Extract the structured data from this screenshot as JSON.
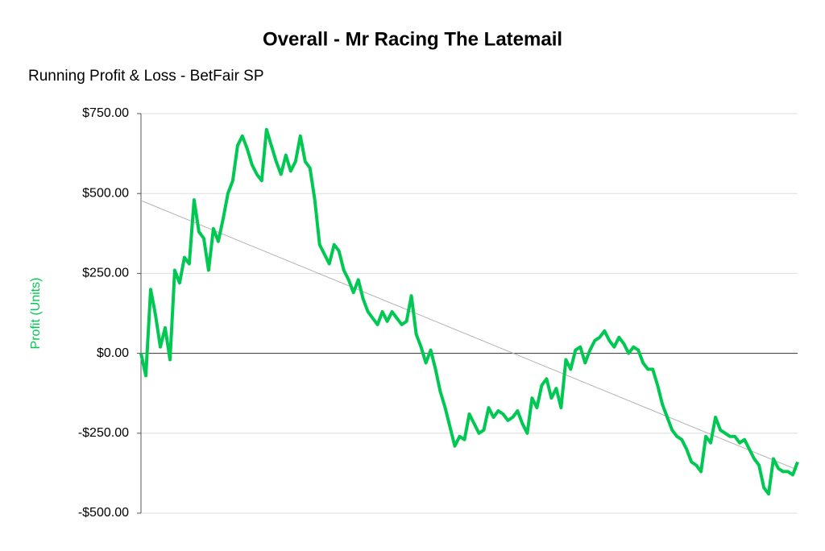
{
  "chart_data": {
    "type": "line",
    "title": "Overall - Mr Racing The Latemail",
    "subtitle": "Running Profit & Loss - BetFair SP",
    "y_label": "Profit (Units)",
    "ylim": [
      -500,
      750
    ],
    "yticks": [
      {
        "value": 750,
        "label": "$750.00"
      },
      {
        "value": 500,
        "label": "$500.00"
      },
      {
        "value": 250,
        "label": "$250.00"
      },
      {
        "value": 0,
        "label": "$0.00"
      },
      {
        "value": -250,
        "label": "-$250.00"
      },
      {
        "value": -500,
        "label": "-$500.00"
      }
    ],
    "grid": true,
    "series": [
      {
        "color": "#00c853",
        "values": [
          0,
          -70,
          200,
          120,
          20,
          80,
          -20,
          260,
          220,
          300,
          280,
          480,
          380,
          360,
          260,
          390,
          350,
          420,
          500,
          540,
          650,
          680,
          640,
          590,
          560,
          540,
          700,
          650,
          600,
          560,
          620,
          570,
          600,
          680,
          600,
          580,
          480,
          340,
          310,
          280,
          340,
          320,
          260,
          230,
          190,
          230,
          170,
          130,
          110,
          90,
          130,
          100,
          130,
          110,
          90,
          100,
          180,
          60,
          20,
          -30,
          10,
          -50,
          -120,
          -170,
          -230,
          -290,
          -260,
          -270,
          -190,
          -220,
          -250,
          -240,
          -170,
          -200,
          -180,
          -190,
          -210,
          -200,
          -180,
          -220,
          -250,
          -140,
          -170,
          -100,
          -80,
          -140,
          -110,
          -170,
          -20,
          -50,
          10,
          20,
          -30,
          10,
          40,
          50,
          70,
          40,
          20,
          50,
          30,
          0,
          20,
          10,
          -30,
          -50,
          -50,
          -100,
          -160,
          -200,
          -240,
          -260,
          -270,
          -300,
          -340,
          -350,
          -370,
          -260,
          -280,
          -200,
          -240,
          -250,
          -260,
          -260,
          -280,
          -270,
          -300,
          -330,
          -350,
          -420,
          -440,
          -330,
          -360,
          -370,
          -370,
          -380,
          -340
        ]
      }
    ],
    "trend": {
      "color": "#b0b0b0",
      "values": [
        478,
        -365
      ]
    }
  }
}
